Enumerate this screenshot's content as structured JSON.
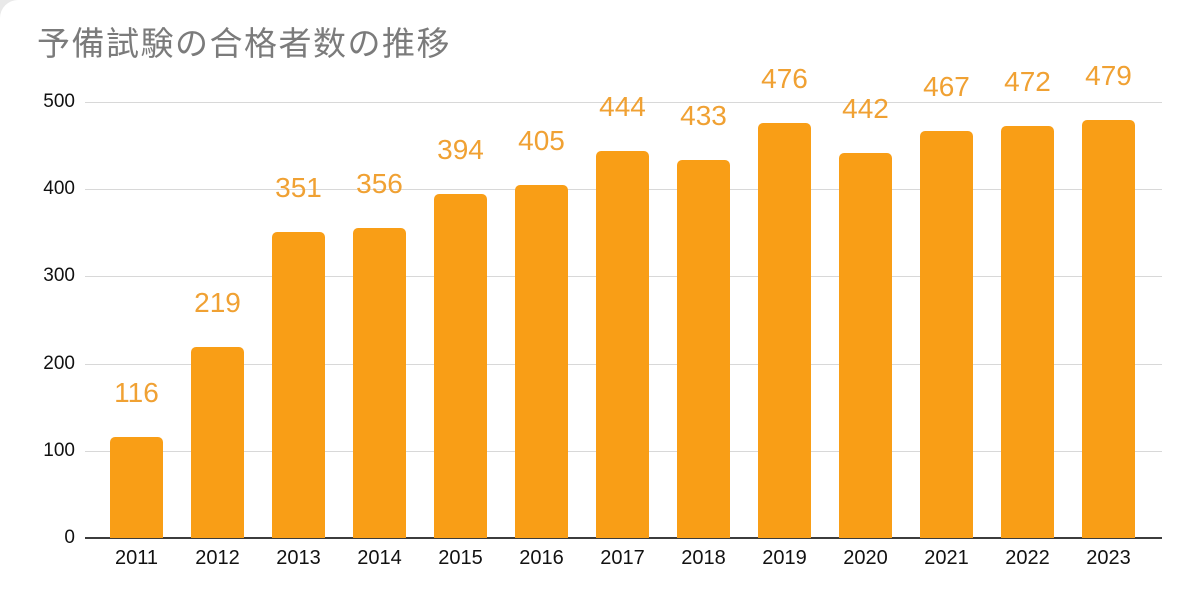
{
  "page": {
    "background_color": "#ffffff",
    "outside_corner_color": "#e9e9e9"
  },
  "chart_data": {
    "type": "bar",
    "title": "予備試験の合格者数の推移",
    "categories": [
      "2011",
      "2012",
      "2013",
      "2014",
      "2015",
      "2016",
      "2017",
      "2018",
      "2019",
      "2020",
      "2021",
      "2022",
      "2023"
    ],
    "values": [
      116,
      219,
      351,
      356,
      394,
      405,
      444,
      433,
      476,
      442,
      467,
      472,
      479
    ],
    "xlabel": "",
    "ylabel": "",
    "y_ticks": [
      0,
      100,
      200,
      300,
      400,
      500
    ],
    "ylim": [
      0,
      500
    ],
    "grid": true,
    "legend_position": "none",
    "data_labels_shown": true,
    "colors": {
      "bar": "#F99E16",
      "data_label": "#F0A133",
      "title": "#7B7B7B",
      "axis_text": "#111111",
      "gridline": "#D8D8D8",
      "baseline": "#3C3C3C"
    }
  }
}
